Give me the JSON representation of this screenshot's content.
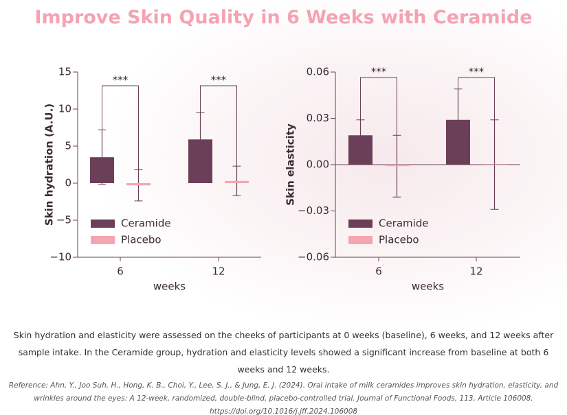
{
  "title": "Improve Skin Quality in 6 Weeks with Ceramide",
  "chart_data": [
    {
      "type": "bar",
      "y_label": "Skin hydration (A.U.)",
      "x_label": "weeks",
      "categories": [
        "6",
        "12"
      ],
      "series": [
        {
          "name": "Ceramide",
          "color": "#6b3f57",
          "values": [
            3.5,
            5.9
          ],
          "errors": [
            3.7,
            3.6
          ]
        },
        {
          "name": "Placebo",
          "color": "#f4a6b0",
          "values": [
            -0.3,
            0.3
          ],
          "errors": [
            2.1,
            2.0
          ]
        }
      ],
      "annotations": [
        "***",
        "***"
      ],
      "ylim": [
        -10,
        15
      ],
      "yticks": [
        {
          "value": -10,
          "label": "−10"
        },
        {
          "value": -5,
          "label": "−5"
        },
        0,
        5,
        10,
        15
      ],
      "zero_line": false
    },
    {
      "type": "bar",
      "y_label": "Skin elasticity",
      "x_label": "weeks",
      "categories": [
        "6",
        "12"
      ],
      "series": [
        {
          "name": "Ceramide",
          "color": "#6b3f57",
          "values": [
            0.019,
            0.029
          ],
          "errors": [
            0.01,
            0.02
          ]
        },
        {
          "name": "Placebo",
          "color": "#f4a6b0",
          "values": [
            -0.001,
            0
          ],
          "errors": [
            0.02,
            0.029
          ]
        }
      ],
      "annotations": [
        "***",
        "***"
      ],
      "ylim": [
        -0.06,
        0.06
      ],
      "yticks": [
        {
          "value": -0.06,
          "label": "−0.06"
        },
        {
          "value": -0.03,
          "label": "−0.03"
        },
        {
          "value": 0,
          "label": "0.00"
        },
        0.03,
        0.06
      ],
      "zero_line": true
    }
  ],
  "caption": "Skin hydration and elasticity were assessed on the cheeks of participants at 0 weeks (baseline), 6 weeks, and 12 weeks after sample intake. In the Ceramide group, hydration and elasticity levels showed a significant increase from baseline at both 6 weeks and 12 weeks.",
  "reference": "Reference: Ahn, Y., Joo Suh, H., Hong, K. B., Choi, Y., Lee, S. J., & Jung, E. J. (2024). Oral intake of milk ceramides improves skin hydration, elasticity, and wrinkles around the eyes: A 12-week, randomized, double-blind, placebo-controlled trial. Journal of Functional Foods, 113, Article 106008. https://doi.org/10.1016/j.jff.2024.106008"
}
